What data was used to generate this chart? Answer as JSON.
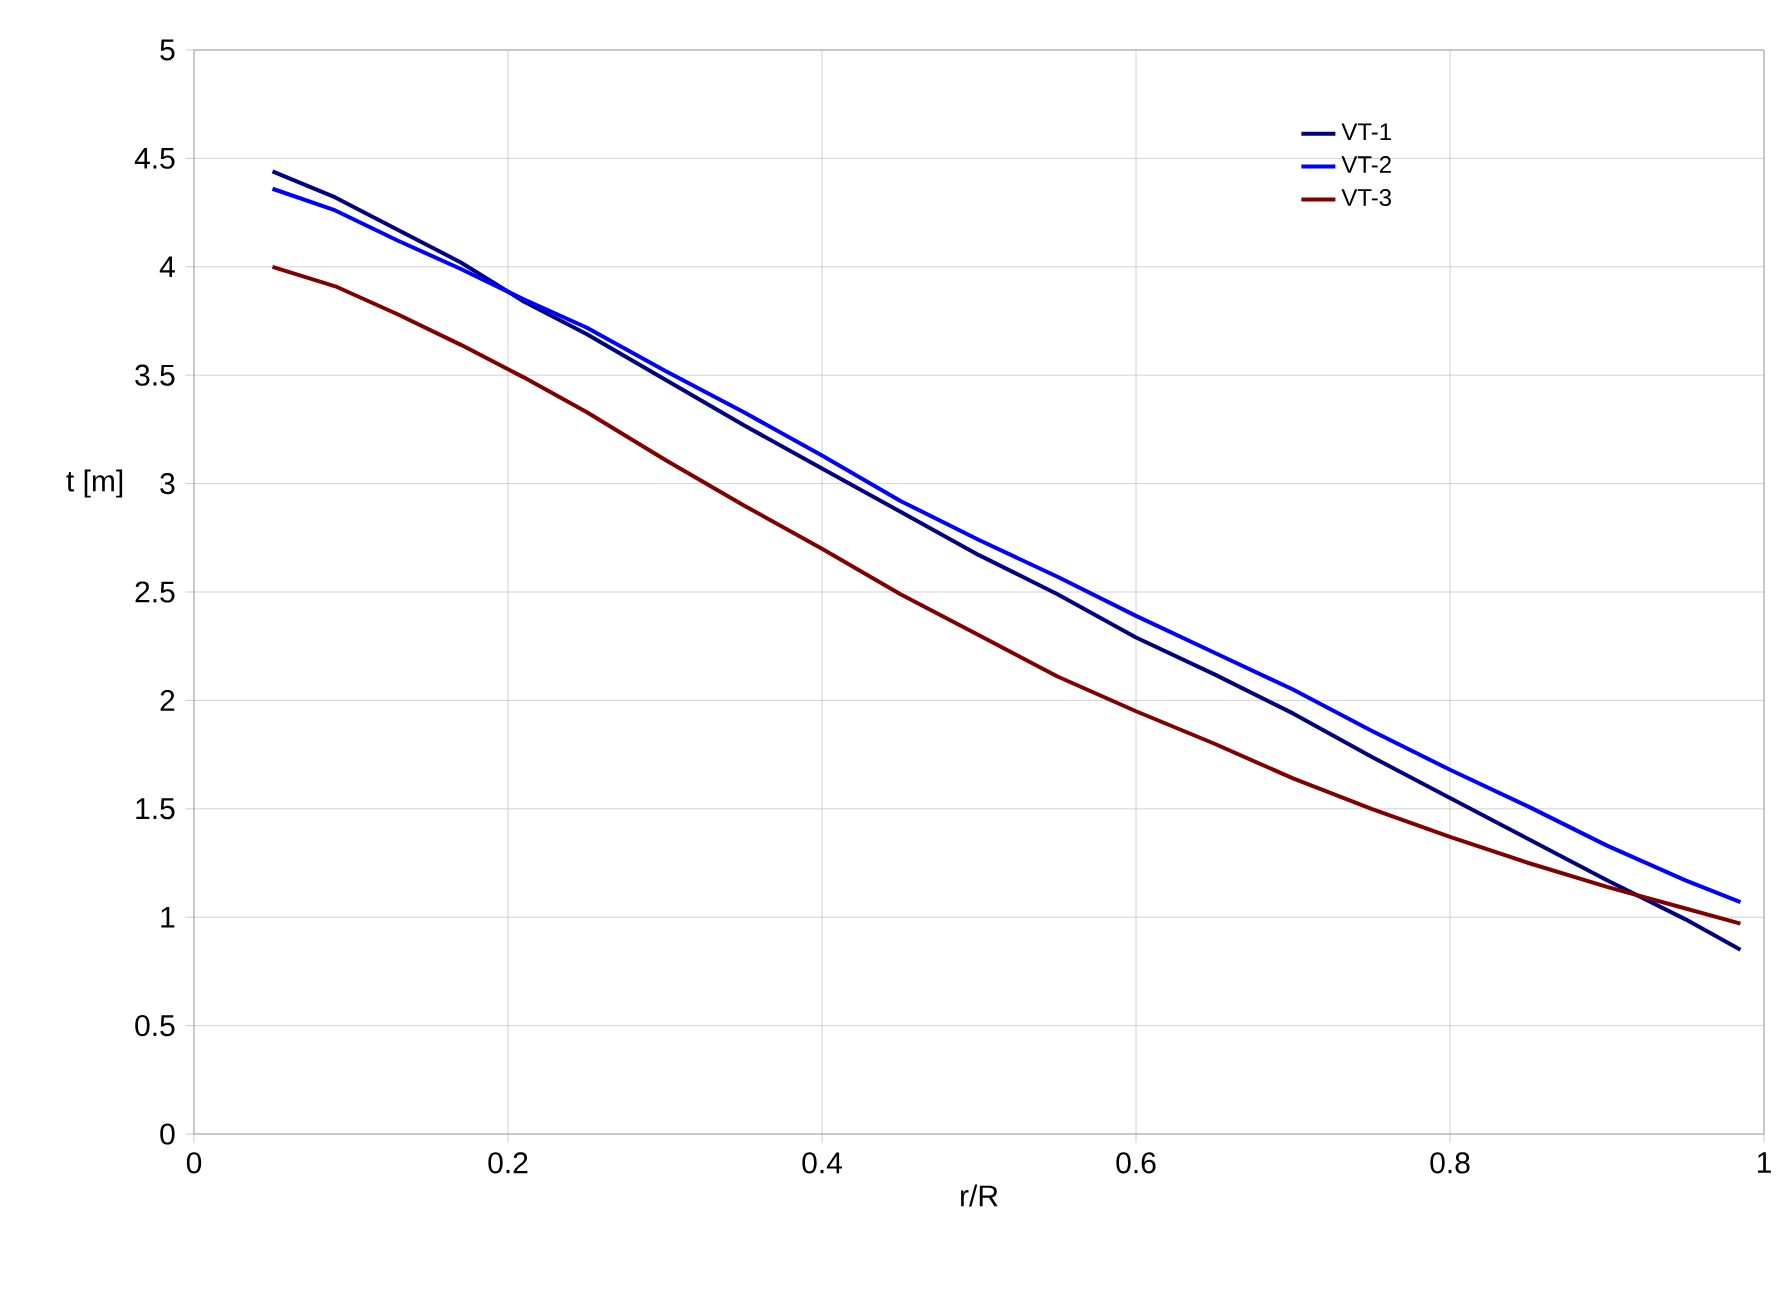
{
  "chart_data": {
    "type": "line",
    "xlabel": "r/R",
    "ylabel": "t [m]",
    "x": [
      0.05,
      0.09,
      0.13,
      0.17,
      0.21,
      0.25,
      0.3,
      0.35,
      0.4,
      0.45,
      0.5,
      0.55,
      0.6,
      0.65,
      0.7,
      0.75,
      0.8,
      0.85,
      0.9,
      0.95,
      0.985
    ],
    "series": [
      {
        "name": "VT-1",
        "color": "#000080",
        "values": [
          4.44,
          4.32,
          4.17,
          4.02,
          3.84,
          3.69,
          3.48,
          3.27,
          3.07,
          2.87,
          2.67,
          2.49,
          2.29,
          2.12,
          1.94,
          1.74,
          1.55,
          1.36,
          1.17,
          0.99,
          0.85
        ]
      },
      {
        "name": "VT-2",
        "color": "#0000ff",
        "values": [
          4.36,
          4.26,
          4.12,
          3.99,
          3.85,
          3.72,
          3.52,
          3.33,
          3.13,
          2.92,
          2.74,
          2.57,
          2.39,
          2.22,
          2.05,
          1.86,
          1.68,
          1.51,
          1.33,
          1.17,
          1.07
        ]
      },
      {
        "name": "VT-3",
        "color": "#800000",
        "values": [
          4.0,
          3.91,
          3.78,
          3.64,
          3.49,
          3.33,
          3.11,
          2.9,
          2.7,
          2.49,
          2.3,
          2.11,
          1.95,
          1.8,
          1.64,
          1.5,
          1.37,
          1.25,
          1.14,
          1.04,
          0.97
        ]
      }
    ],
    "xlim": [
      0,
      1
    ],
    "ylim": [
      0,
      5
    ],
    "xticks": [
      0,
      0.2,
      0.4,
      0.6,
      0.8,
      1
    ],
    "yticks": [
      0,
      0.5,
      1,
      1.5,
      2,
      2.5,
      3,
      3.5,
      4,
      4.5,
      5
    ],
    "grid": true,
    "legend": "top right",
    "marker": "none",
    "line_style": "solid"
  }
}
